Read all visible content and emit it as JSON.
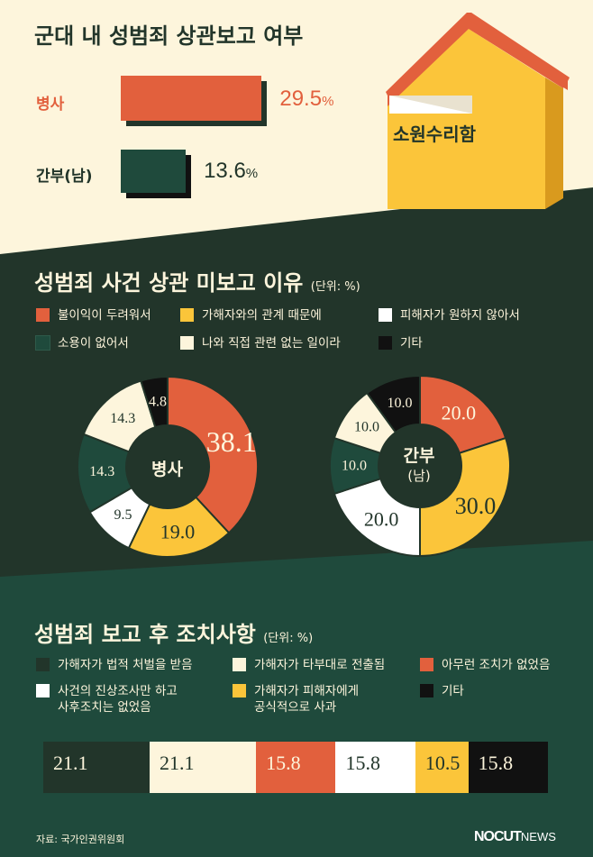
{
  "colors": {
    "cream": "#fdf5dc",
    "dark_green": "#22352a",
    "green": "#1f4a3c",
    "orange": "#e2603d",
    "yellow": "#fbc53a",
    "white": "#ffffff",
    "black": "#111111"
  },
  "house": {
    "label": "소원수리함",
    "icon": "mailbox-house-icon"
  },
  "chart_data": [
    {
      "type": "bar",
      "orientation": "horizontal",
      "title": "군대 내 성범죄 상관보고 여부",
      "categories": [
        "병사",
        "간부(남)"
      ],
      "values": [
        29.5,
        13.6
      ],
      "value_suffix": "%",
      "colors": [
        "#e2603d",
        "#1f4a3c"
      ]
    },
    {
      "type": "pie",
      "donut": true,
      "title": "성범죄 사건 상관 미보고 이유",
      "unit_note": "(단위: %)",
      "categories": [
        "불이익이 두려워서",
        "가해자와의 관계 때문에",
        "피해자가 원하지 않아서",
        "소용이 없어서",
        "나와 직접 관련 없는 일이라",
        "기타"
      ],
      "legend_colors": [
        "#e2603d",
        "#fbc53a",
        "#ffffff",
        "#1f4a3c",
        "#fdf5dc",
        "#111111"
      ],
      "series": [
        {
          "name": "병사",
          "slices": [
            {
              "label": "38.1",
              "value": 38.1,
              "color": "#e2603d"
            },
            {
              "label": "19.0",
              "value": 19.0,
              "color": "#fbc53a"
            },
            {
              "label": "9.5",
              "value": 9.5,
              "color": "#ffffff"
            },
            {
              "label": "14.3",
              "value": 14.3,
              "color": "#1f4a3c"
            },
            {
              "label": "14.3",
              "value": 14.3,
              "color": "#fdf5dc"
            },
            {
              "label": "4.8",
              "value": 4.8,
              "color": "#111111"
            }
          ]
        },
        {
          "name": "간부",
          "name_sub": "(남)",
          "slices": [
            {
              "label": "20.0",
              "value": 20.0,
              "color": "#e2603d"
            },
            {
              "label": "30.0",
              "value": 30.0,
              "color": "#fbc53a"
            },
            {
              "label": "20.0",
              "value": 20.0,
              "color": "#ffffff"
            },
            {
              "label": "10.0",
              "value": 10.0,
              "color": "#1f4a3c"
            },
            {
              "label": "10.0",
              "value": 10.0,
              "color": "#fdf5dc"
            },
            {
              "label": "10.0",
              "value": 10.0,
              "color": "#111111"
            }
          ]
        }
      ]
    },
    {
      "type": "bar",
      "stacked": true,
      "title": "성범죄 보고 후 조치사항",
      "unit_note": "(단위: %)",
      "categories": [
        "가해자가 법적 처벌을 받음",
        "가해자가 타부대로 전출됨",
        "아무런 조치가 없었음",
        "사건의 진상조사만 하고 사후조치는 없었음",
        "가해자가 피해자에게 공식적으로 사과",
        "기타"
      ],
      "values": [
        21.1,
        21.1,
        15.8,
        15.8,
        10.5,
        15.8
      ],
      "colors": [
        "#22352a",
        "#fdf5dc",
        "#e2603d",
        "#ffffff",
        "#fbc53a",
        "#111111"
      ]
    }
  ],
  "section2_legend": [
    {
      "label": "불이익이 두려워서",
      "color": "#e2603d"
    },
    {
      "label": "가해자와의 관계 때문에",
      "color": "#fbc53a"
    },
    {
      "label": "피해자가 원하지 않아서",
      "color": "#ffffff"
    },
    {
      "label": "소용이 없어서",
      "color": "#1f4a3c"
    },
    {
      "label": "나와 직접 관련 없는 일이라",
      "color": "#fdf5dc"
    },
    {
      "label": "기타",
      "color": "#111111"
    }
  ],
  "section3_legend": [
    {
      "line1": "가해자가 법적 처벌을 받음",
      "line2": "",
      "color": "#22352a"
    },
    {
      "line1": "가해자가 타부대로 전출됨",
      "line2": "",
      "color": "#fdf5dc"
    },
    {
      "line1": "아무런 조치가 없었음",
      "line2": "",
      "color": "#e2603d"
    },
    {
      "line1": "사건의 진상조사만 하고",
      "line2": "사후조치는 없었음",
      "color": "#ffffff"
    },
    {
      "line1": "가해자가 피해자에게",
      "line2": "공식적으로 사과",
      "color": "#fbc53a"
    },
    {
      "line1": "기타",
      "line2": "",
      "color": "#111111"
    }
  ],
  "footer": {
    "source": "자료: 국가인권위원회",
    "brand_main": "NOCUT",
    "brand_sub": "NEWS"
  }
}
